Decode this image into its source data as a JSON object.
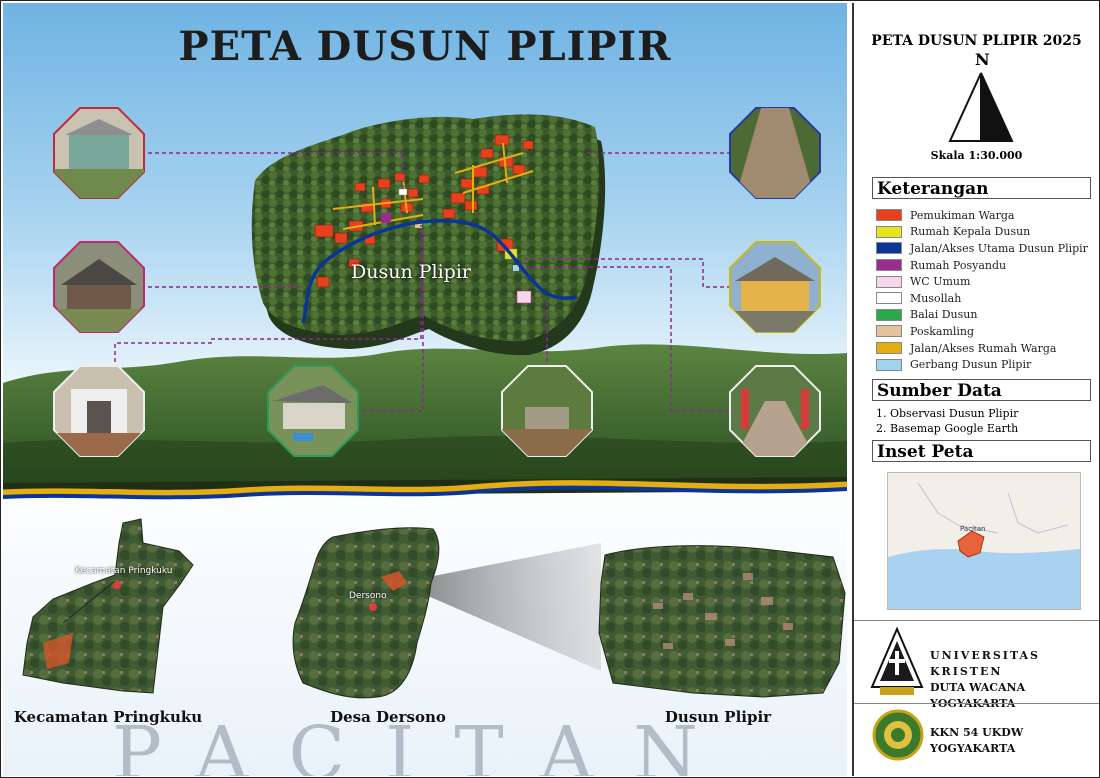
{
  "map": {
    "title": "PETA DUSUN PLIPIR",
    "village_label": "Dusun Plipir",
    "region_labels": {
      "kecamatan": "Kecamatan Pringkuku",
      "desa": "Desa Dersono",
      "dusun": "Dusun Plipir"
    },
    "small_labels": {
      "kecamatan_pin": "Kecamatan Pringkuku",
      "desa_pin": "Dersono"
    },
    "backdrop_text": "PACITAN",
    "photos": [
      {
        "name": "photo-rumah-kepala-dusun"
      },
      {
        "name": "photo-rumah-posyandu"
      },
      {
        "name": "photo-wc-umum"
      },
      {
        "name": "photo-balai-dusun"
      },
      {
        "name": "photo-poskamling"
      },
      {
        "name": "photo-jalan-utama"
      },
      {
        "name": "photo-rumah-warga"
      },
      {
        "name": "photo-gerbang-dusun"
      }
    ]
  },
  "panel": {
    "title": "PETA DUSUN PLIPIR 2025",
    "north_letter": "N",
    "scale": "Skala 1:30.000",
    "legend_title": "Keterangan",
    "legend": [
      {
        "label": "Pemukiman Warga",
        "color": "#e8401c"
      },
      {
        "label": "Rumah Kepala Dusun",
        "color": "#e4e61a"
      },
      {
        "label": "Jalan/Akses Utama Dusun Plipir",
        "color": "#0a3596"
      },
      {
        "label": "Rumah Posyandu",
        "color": "#9b2c8f"
      },
      {
        "label": "WC Umum",
        "color": "#f6d6ea"
      },
      {
        "label": "Musollah",
        "color": "#ffffff"
      },
      {
        "label": "Balai Dusun",
        "color": "#2aa84a"
      },
      {
        "label": "Poskamling",
        "color": "#e4c29a"
      },
      {
        "label": "Jalan/Akses Rumah Warga",
        "color": "#e6ad12"
      },
      {
        "label": "Gerbang Dusun Plipir",
        "color": "#9fd3ee"
      }
    ],
    "sources_title": "Sumber Data",
    "sources": [
      "1. Observasi Dusun Plipir",
      "2. Basemap Google Earth"
    ],
    "inset_title": "Inset Peta",
    "inset_label": "Pacitan",
    "university_line1": "UNIVERSITAS KRISTEN",
    "university_line2": "DUTA WACANA YOGYAKARTA",
    "kkn": "KKN 54 UKDW YOGYAKARTA"
  }
}
